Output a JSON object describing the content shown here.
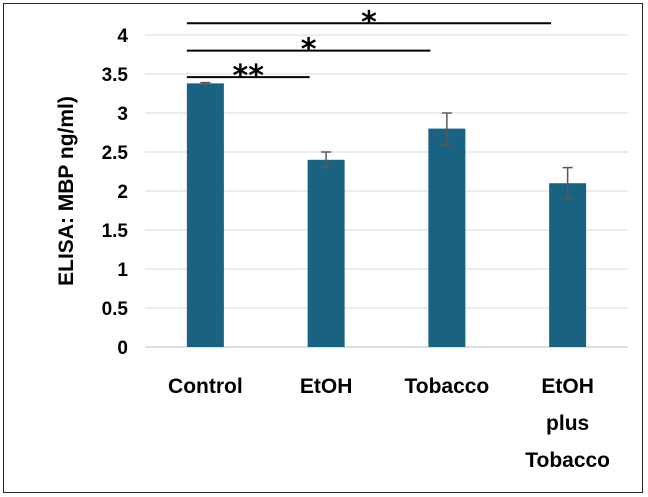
{
  "chart_data": {
    "type": "bar",
    "title": "",
    "xlabel": "",
    "ylabel": "ELISA: MBP ng/ml)",
    "ylim": [
      0,
      4
    ],
    "yticks": [
      "0",
      "0.5",
      "1",
      "1.5",
      "2",
      "2.5",
      "3",
      "3.5",
      "4"
    ],
    "grid": true,
    "categories": [
      [
        "Control"
      ],
      [
        "EtOH"
      ],
      [
        "Tobacco"
      ],
      [
        "EtOH",
        "plus",
        "Tobacco"
      ]
    ],
    "values": [
      3.38,
      2.4,
      2.8,
      2.1
    ],
    "error": [
      0.01,
      0.1,
      0.2,
      0.2
    ],
    "bar_color": "#1a6282",
    "significance": [
      {
        "from": 0,
        "to": 1,
        "label": "**",
        "y": 3.46
      },
      {
        "from": 0,
        "to": 2,
        "label": "*",
        "y": 3.8
      },
      {
        "from": 0,
        "to": 3,
        "label": "*",
        "y": 4.15
      }
    ]
  }
}
